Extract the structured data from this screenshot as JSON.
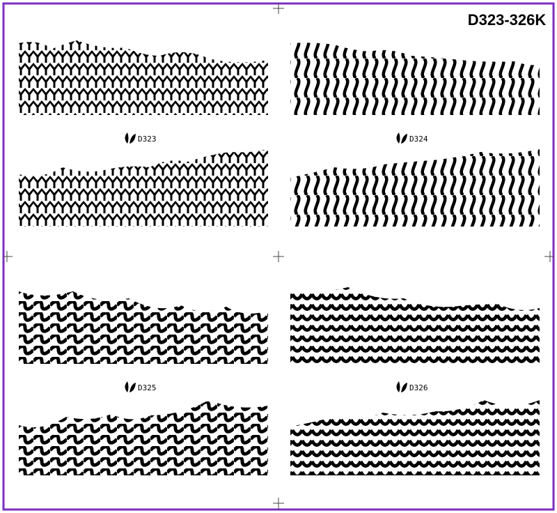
{
  "title": "D323-326K",
  "designs": [
    {
      "label": "D323"
    },
    {
      "label": "D324"
    },
    {
      "label": "D325"
    },
    {
      "label": "D326"
    }
  ]
}
